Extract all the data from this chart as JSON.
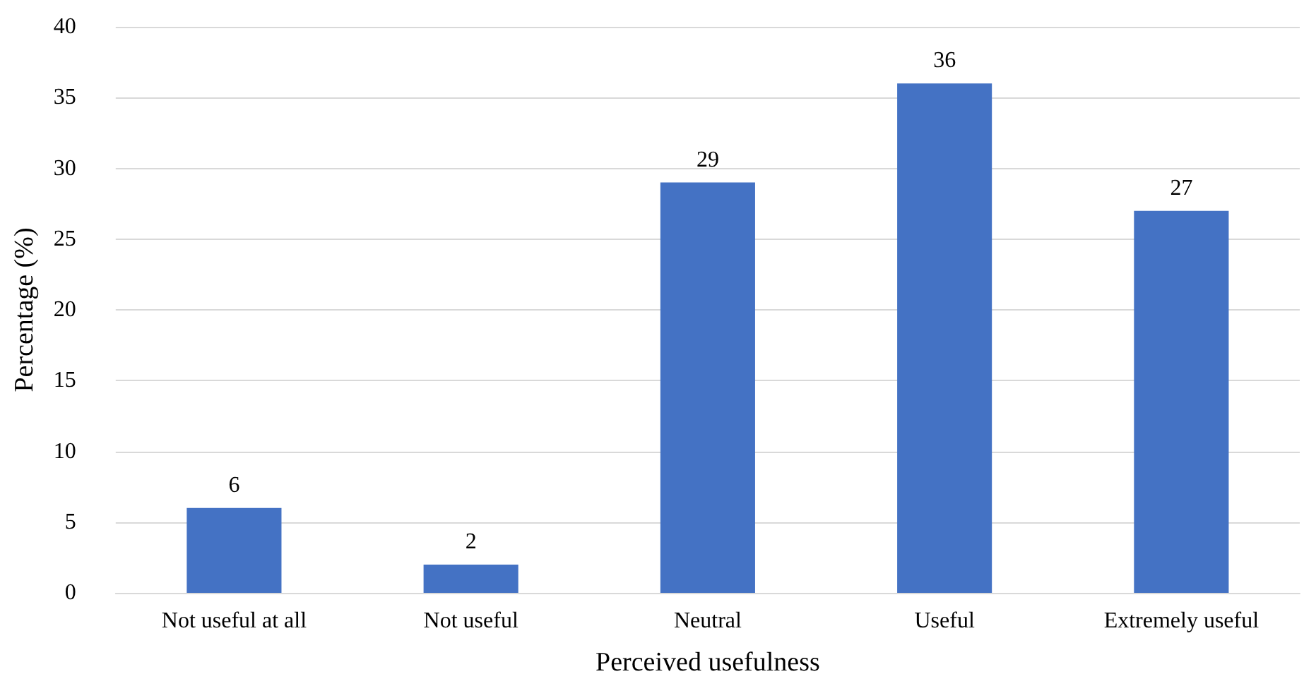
{
  "chart_data": {
    "type": "bar",
    "xlabel": "Perceived usefulness",
    "ylabel": "Percentage (%)",
    "categories": [
      "Not useful at all",
      "Not useful",
      "Neutral",
      "Useful",
      "Extremely useful"
    ],
    "values": [
      6,
      2,
      29,
      36,
      27
    ],
    "color": "#4472c4",
    "ylim": [
      0,
      40
    ],
    "yticks": [
      0,
      5,
      10,
      15,
      20,
      25,
      30,
      35,
      40
    ],
    "grid": "y",
    "data_labels": true
  }
}
